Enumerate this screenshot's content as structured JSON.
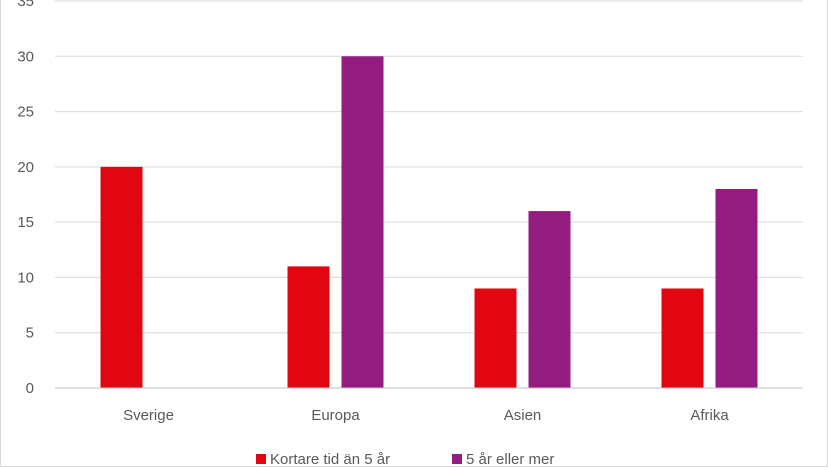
{
  "chart_data": {
    "type": "bar",
    "categories": [
      "Sverige",
      "Europa",
      "Asien",
      "Afrika"
    ],
    "series": [
      {
        "name": "Kortare tid än 5 år",
        "color": "#e20613",
        "values": [
          20,
          11,
          9,
          9
        ]
      },
      {
        "name": "5 år eller mer",
        "color": "#941b80",
        "values": [
          null,
          30,
          16,
          18
        ]
      }
    ],
    "ylim": [
      0,
      35
    ],
    "yticks": [
      0,
      5,
      10,
      15,
      20,
      25,
      30,
      35
    ],
    "grid": true,
    "legend_position": "bottom",
    "gridline_color": "#d9d9d9",
    "axis_line_color": "#bfbfbf",
    "text_color": "#595959"
  }
}
